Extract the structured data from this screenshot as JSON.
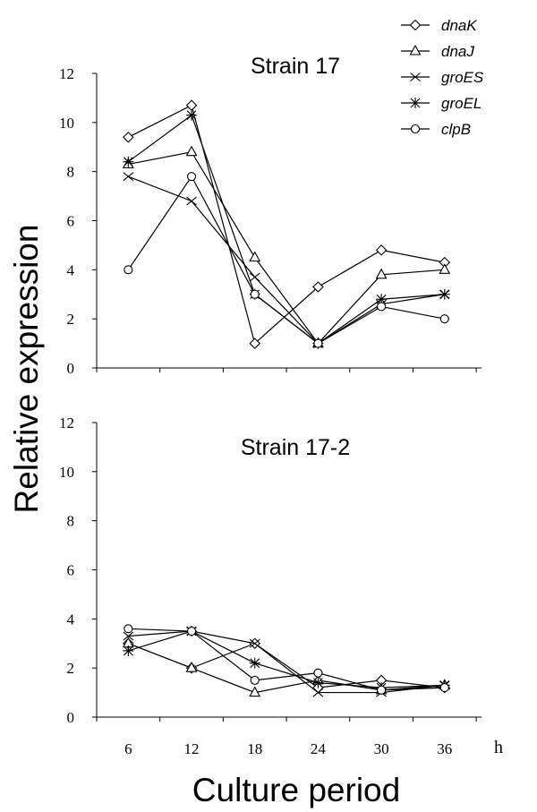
{
  "chart_data": {
    "type": "line",
    "xlabel": "Culture period",
    "x_unit": "h",
    "ylabel": "Relative expression",
    "x": [
      6,
      12,
      18,
      24,
      30,
      36
    ],
    "ylim": [
      0,
      12
    ],
    "yticks": [
      0,
      2,
      4,
      6,
      8,
      10,
      12
    ],
    "legend_position": "top-right",
    "legend": [
      {
        "name": "dnaK",
        "marker": "diamond"
      },
      {
        "name": "dnaJ",
        "marker": "triangle"
      },
      {
        "name": "groES",
        "marker": "x"
      },
      {
        "name": "groEL",
        "marker": "asterisk"
      },
      {
        "name": "clpB",
        "marker": "circle"
      }
    ],
    "panels": [
      {
        "title": "Strain 17",
        "series": [
          {
            "name": "dnaK",
            "values": [
              9.4,
              10.7,
              1.0,
              3.3,
              4.8,
              4.3
            ]
          },
          {
            "name": "dnaJ",
            "values": [
              8.3,
              8.8,
              4.5,
              1.0,
              3.8,
              4.0
            ]
          },
          {
            "name": "groES",
            "values": [
              7.8,
              6.8,
              3.7,
              1.0,
              2.6,
              3.0
            ]
          },
          {
            "name": "groEL",
            "values": [
              8.4,
              10.3,
              3.0,
              1.0,
              2.8,
              3.0
            ]
          },
          {
            "name": "clpB",
            "values": [
              4.0,
              7.8,
              3.0,
              1.0,
              2.5,
              2.0
            ]
          }
        ]
      },
      {
        "title": "Strain 17-2",
        "series": [
          {
            "name": "dnaK",
            "values": [
              3.0,
              2.0,
              3.0,
              1.2,
              1.5,
              1.2
            ]
          },
          {
            "name": "dnaJ",
            "values": [
              3.0,
              2.0,
              1.0,
              1.5,
              1.1,
              1.3
            ]
          },
          {
            "name": "groES",
            "values": [
              3.3,
              3.5,
              3.0,
              1.0,
              1.0,
              1.3
            ]
          },
          {
            "name": "groEL",
            "values": [
              2.7,
              3.5,
              2.2,
              1.4,
              1.2,
              1.3
            ]
          },
          {
            "name": "clpB",
            "values": [
              3.6,
              3.5,
              1.5,
              1.8,
              1.1,
              1.2
            ]
          }
        ]
      }
    ]
  }
}
